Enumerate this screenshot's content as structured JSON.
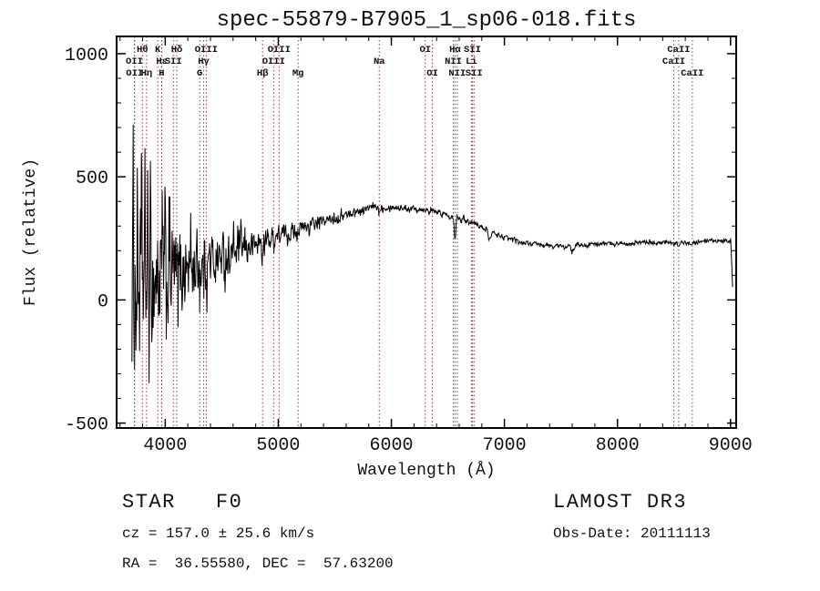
{
  "title": "spec-55879-B7905_1_sp06-018.fits",
  "footer": {
    "class_label": "STAR   F0",
    "survey": "LAMOST DR3",
    "cz": "cz = 157.0 ± 25.6 km/s",
    "obs_date": "Obs-Date: 20111113",
    "radec": "RA =  36.55580, DEC =  57.63200"
  },
  "colors": {
    "background": "#ffffff",
    "spectrum": "#000000",
    "axis": "#000000",
    "line_marker": "#993333",
    "label_text": "#111111"
  },
  "chart_data": {
    "type": "line",
    "title": "spec-55879-B7905_1_sp06-018.fits",
    "xlabel": "Wavelength (Å)",
    "ylabel": "Flux (relative)",
    "xlim": [
      3570,
      9050
    ],
    "ylim": [
      -520,
      1070
    ],
    "x_ticks": [
      4000,
      5000,
      6000,
      7000,
      8000,
      9000
    ],
    "y_ticks": [
      -500,
      0,
      500,
      1000
    ],
    "x_minor_step": 200,
    "y_minor_step": 100,
    "grid": false,
    "legend": "none",
    "series_name": "flux",
    "continuum_anchors": [
      [
        3700,
        60
      ],
      [
        3800,
        70
      ],
      [
        3900,
        85
      ],
      [
        4000,
        100
      ],
      [
        4100,
        115
      ],
      [
        4200,
        130
      ],
      [
        4300,
        145
      ],
      [
        4400,
        160
      ],
      [
        4500,
        175
      ],
      [
        4600,
        190
      ],
      [
        4700,
        205
      ],
      [
        4800,
        225
      ],
      [
        4900,
        245
      ],
      [
        5000,
        262
      ],
      [
        5100,
        276
      ],
      [
        5200,
        290
      ],
      [
        5300,
        305
      ],
      [
        5400,
        318
      ],
      [
        5500,
        332
      ],
      [
        5600,
        346
      ],
      [
        5700,
        360
      ],
      [
        5800,
        372
      ],
      [
        5900,
        380
      ],
      [
        6000,
        378
      ],
      [
        6100,
        374
      ],
      [
        6200,
        372
      ],
      [
        6300,
        368
      ],
      [
        6400,
        356
      ],
      [
        6500,
        346
      ],
      [
        6600,
        334
      ],
      [
        6700,
        318
      ],
      [
        6800,
        296
      ],
      [
        6900,
        272
      ],
      [
        7000,
        254
      ],
      [
        7100,
        240
      ],
      [
        7200,
        230
      ],
      [
        7300,
        224
      ],
      [
        7400,
        220
      ],
      [
        7500,
        218
      ],
      [
        7600,
        220
      ],
      [
        7700,
        223
      ],
      [
        7800,
        226
      ],
      [
        7900,
        228
      ],
      [
        8000,
        230
      ],
      [
        8200,
        233
      ],
      [
        8400,
        232
      ],
      [
        8600,
        231
      ],
      [
        8800,
        236
      ],
      [
        9000,
        240
      ]
    ],
    "noise_profile": {
      "start": 3700,
      "base": 9,
      "amp": 440,
      "scale": 520,
      "ar": 0.38,
      "gain": 0.82
    },
    "absorption_lines": [
      {
        "wavelength": 4102,
        "depth": 55,
        "width": 12
      },
      {
        "wavelength": 4340,
        "depth": 55,
        "width": 12
      },
      {
        "wavelength": 4861,
        "depth": 50,
        "width": 12
      },
      {
        "wavelength": 5893,
        "depth": 22,
        "width": 10
      },
      {
        "wavelength": 6563,
        "depth": 85,
        "width": 10
      },
      {
        "wavelength": 6870,
        "depth": 32,
        "width": 16
      },
      {
        "wavelength": 7600,
        "depth": 24,
        "width": 18
      },
      {
        "wavelength": 8498,
        "depth": 14,
        "width": 8
      },
      {
        "wavelength": 8542,
        "depth": 16,
        "width": 8
      },
      {
        "wavelength": 8662,
        "depth": 14,
        "width": 8
      }
    ],
    "cutoff_points": [
      [
        9006,
        200
      ],
      [
        9012,
        128
      ],
      [
        9018,
        52
      ]
    ],
    "spectral_lines": [
      {
        "label": "Hθ",
        "wavelength": 3798,
        "row": 0
      },
      {
        "label": "OII",
        "wavelength": 3727,
        "row": 1
      },
      {
        "label": "OII",
        "wavelength": 3729,
        "row": 2
      },
      {
        "label": "Hη",
        "wavelength": 3835,
        "row": 2
      },
      {
        "label": "K",
        "wavelength": 3934,
        "row": 0
      },
      {
        "label": "Hε",
        "wavelength": 3970,
        "row": 1
      },
      {
        "label": "H",
        "wavelength": 3968,
        "row": 2
      },
      {
        "label": "SII",
        "wavelength": 4072,
        "row": 1
      },
      {
        "label": "Hδ",
        "wavelength": 4102,
        "row": 0
      },
      {
        "label": "G",
        "wavelength": 4305,
        "row": 2
      },
      {
        "label": "Hγ",
        "wavelength": 4340,
        "row": 1
      },
      {
        "label": "OIII",
        "wavelength": 4363,
        "row": 0
      },
      {
        "label": "Hβ",
        "wavelength": 4861,
        "row": 2
      },
      {
        "label": "OIII",
        "wavelength": 4959,
        "row": 1
      },
      {
        "label": "OIII",
        "wavelength": 5007,
        "row": 0
      },
      {
        "label": "Mg",
        "wavelength": 5175,
        "row": 2
      },
      {
        "label": "Na",
        "wavelength": 5893,
        "row": 1
      },
      {
        "label": "OI",
        "wavelength": 6300,
        "row": 0
      },
      {
        "label": "OI",
        "wavelength": 6363,
        "row": 2
      },
      {
        "label": "NII",
        "wavelength": 6548,
        "row": 1
      },
      {
        "label": "Hα",
        "wavelength": 6563,
        "row": 0
      },
      {
        "label": "NII",
        "wavelength": 6583,
        "row": 2
      },
      {
        "label": "Li",
        "wavelength": 6708,
        "row": 1
      },
      {
        "label": "SII",
        "wavelength": 6717,
        "row": 0
      },
      {
        "label": "SII",
        "wavelength": 6731,
        "row": 2
      },
      {
        "label": "CaII",
        "wavelength": 8498,
        "row": 1
      },
      {
        "label": "CaII",
        "wavelength": 8542,
        "row": 0
      },
      {
        "label": "CaII",
        "wavelength": 8662,
        "row": 2
      }
    ]
  }
}
